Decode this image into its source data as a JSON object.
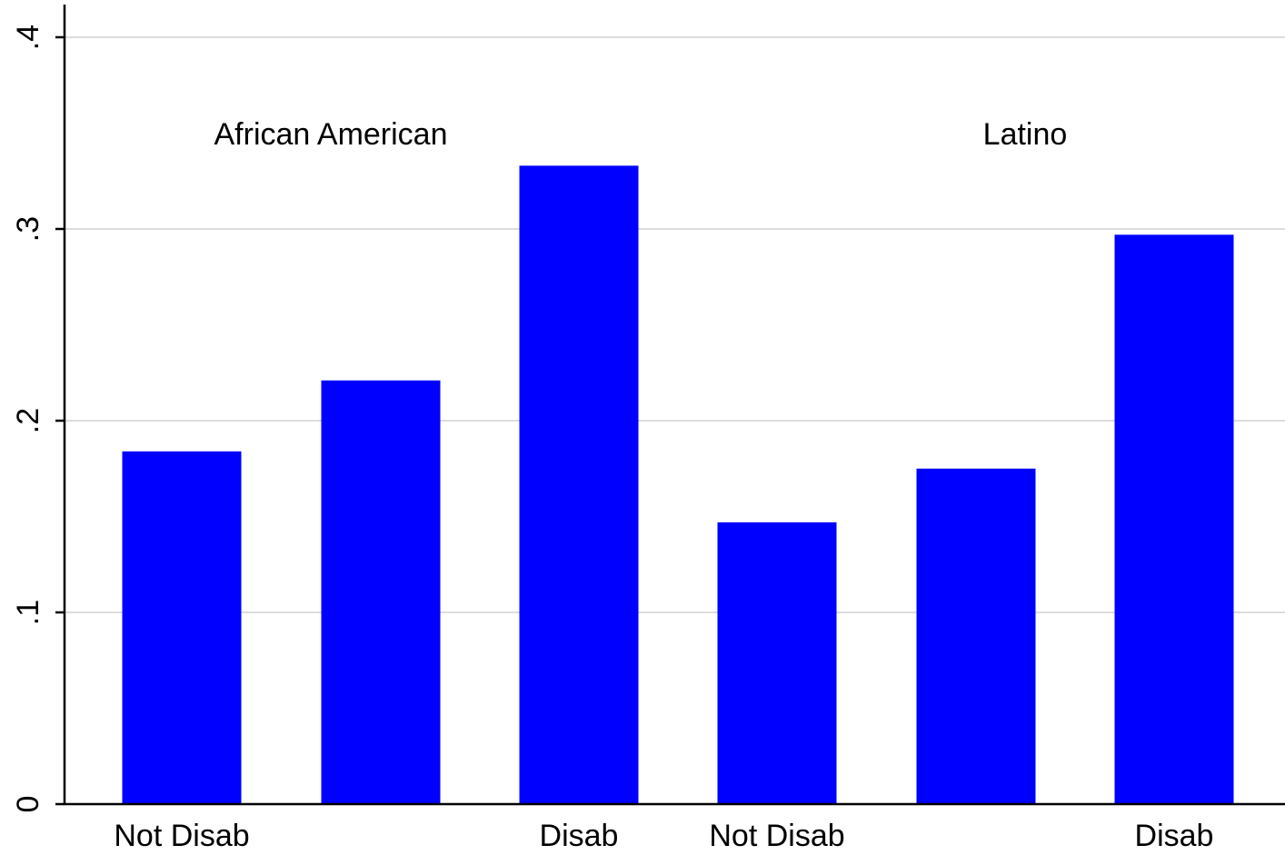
{
  "chart_data": {
    "type": "bar",
    "categories": [
      "Not Disab",
      "",
      "Disab",
      "Not Disab",
      "",
      "Disab"
    ],
    "values": [
      0.184,
      0.221,
      0.333,
      0.147,
      0.175,
      0.297
    ],
    "groups": [
      {
        "label": "African American",
        "bars": [
          0,
          1,
          2
        ]
      },
      {
        "label": "Latino",
        "bars": [
          3,
          4,
          5
        ]
      }
    ],
    "ylim": [
      0,
      0.4
    ],
    "yticks": [
      0,
      0.1,
      0.2,
      0.3,
      0.4
    ],
    "ytick_labels": [
      "0",
      ".1",
      ".2",
      ".3",
      ".4"
    ],
    "grid": true,
    "bar_color": "#0000ff",
    "grid_color": "#dcdcdc",
    "title": "",
    "xlabel": "",
    "ylabel": ""
  }
}
